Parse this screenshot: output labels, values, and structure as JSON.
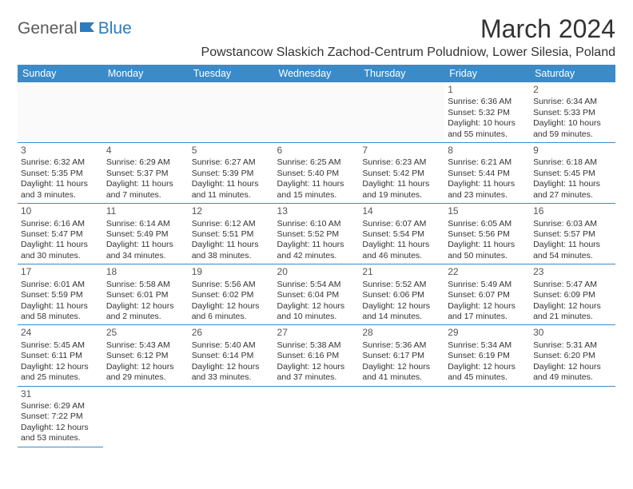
{
  "logo": {
    "part1": "General",
    "part2": "Blue"
  },
  "title": "March 2024",
  "subtitle": "Powstancow Slaskich Zachod-Centrum Poludniow, Lower Silesia, Poland",
  "dayHeaders": [
    "Sunday",
    "Monday",
    "Tuesday",
    "Wednesday",
    "Thursday",
    "Friday",
    "Saturday"
  ],
  "colors": {
    "headerBg": "#3b8bc9",
    "headerText": "#ffffff",
    "border": "#3b8bc9",
    "text": "#333333",
    "logoBlue": "#2b7bbf",
    "logoGray": "#5a5a5a",
    "background": "#ffffff"
  },
  "fonts": {
    "title_size": 32,
    "subtitle_size": 16,
    "header_size": 12.5,
    "cell_size": 10.5,
    "daynum_size": 12,
    "logo_size": 21
  },
  "startWeekday": 5,
  "daysInMonth": 31,
  "days": [
    {
      "n": 1,
      "sunrise": "6:36 AM",
      "sunset": "5:32 PM",
      "daylight": "10 hours and 55 minutes."
    },
    {
      "n": 2,
      "sunrise": "6:34 AM",
      "sunset": "5:33 PM",
      "daylight": "10 hours and 59 minutes."
    },
    {
      "n": 3,
      "sunrise": "6:32 AM",
      "sunset": "5:35 PM",
      "daylight": "11 hours and 3 minutes."
    },
    {
      "n": 4,
      "sunrise": "6:29 AM",
      "sunset": "5:37 PM",
      "daylight": "11 hours and 7 minutes."
    },
    {
      "n": 5,
      "sunrise": "6:27 AM",
      "sunset": "5:39 PM",
      "daylight": "11 hours and 11 minutes."
    },
    {
      "n": 6,
      "sunrise": "6:25 AM",
      "sunset": "5:40 PM",
      "daylight": "11 hours and 15 minutes."
    },
    {
      "n": 7,
      "sunrise": "6:23 AM",
      "sunset": "5:42 PM",
      "daylight": "11 hours and 19 minutes."
    },
    {
      "n": 8,
      "sunrise": "6:21 AM",
      "sunset": "5:44 PM",
      "daylight": "11 hours and 23 minutes."
    },
    {
      "n": 9,
      "sunrise": "6:18 AM",
      "sunset": "5:45 PM",
      "daylight": "11 hours and 27 minutes."
    },
    {
      "n": 10,
      "sunrise": "6:16 AM",
      "sunset": "5:47 PM",
      "daylight": "11 hours and 30 minutes."
    },
    {
      "n": 11,
      "sunrise": "6:14 AM",
      "sunset": "5:49 PM",
      "daylight": "11 hours and 34 minutes."
    },
    {
      "n": 12,
      "sunrise": "6:12 AM",
      "sunset": "5:51 PM",
      "daylight": "11 hours and 38 minutes."
    },
    {
      "n": 13,
      "sunrise": "6:10 AM",
      "sunset": "5:52 PM",
      "daylight": "11 hours and 42 minutes."
    },
    {
      "n": 14,
      "sunrise": "6:07 AM",
      "sunset": "5:54 PM",
      "daylight": "11 hours and 46 minutes."
    },
    {
      "n": 15,
      "sunrise": "6:05 AM",
      "sunset": "5:56 PM",
      "daylight": "11 hours and 50 minutes."
    },
    {
      "n": 16,
      "sunrise": "6:03 AM",
      "sunset": "5:57 PM",
      "daylight": "11 hours and 54 minutes."
    },
    {
      "n": 17,
      "sunrise": "6:01 AM",
      "sunset": "5:59 PM",
      "daylight": "11 hours and 58 minutes."
    },
    {
      "n": 18,
      "sunrise": "5:58 AM",
      "sunset": "6:01 PM",
      "daylight": "12 hours and 2 minutes."
    },
    {
      "n": 19,
      "sunrise": "5:56 AM",
      "sunset": "6:02 PM",
      "daylight": "12 hours and 6 minutes."
    },
    {
      "n": 20,
      "sunrise": "5:54 AM",
      "sunset": "6:04 PM",
      "daylight": "12 hours and 10 minutes."
    },
    {
      "n": 21,
      "sunrise": "5:52 AM",
      "sunset": "6:06 PM",
      "daylight": "12 hours and 14 minutes."
    },
    {
      "n": 22,
      "sunrise": "5:49 AM",
      "sunset": "6:07 PM",
      "daylight": "12 hours and 17 minutes."
    },
    {
      "n": 23,
      "sunrise": "5:47 AM",
      "sunset": "6:09 PM",
      "daylight": "12 hours and 21 minutes."
    },
    {
      "n": 24,
      "sunrise": "5:45 AM",
      "sunset": "6:11 PM",
      "daylight": "12 hours and 25 minutes."
    },
    {
      "n": 25,
      "sunrise": "5:43 AM",
      "sunset": "6:12 PM",
      "daylight": "12 hours and 29 minutes."
    },
    {
      "n": 26,
      "sunrise": "5:40 AM",
      "sunset": "6:14 PM",
      "daylight": "12 hours and 33 minutes."
    },
    {
      "n": 27,
      "sunrise": "5:38 AM",
      "sunset": "6:16 PM",
      "daylight": "12 hours and 37 minutes."
    },
    {
      "n": 28,
      "sunrise": "5:36 AM",
      "sunset": "6:17 PM",
      "daylight": "12 hours and 41 minutes."
    },
    {
      "n": 29,
      "sunrise": "5:34 AM",
      "sunset": "6:19 PM",
      "daylight": "12 hours and 45 minutes."
    },
    {
      "n": 30,
      "sunrise": "5:31 AM",
      "sunset": "6:20 PM",
      "daylight": "12 hours and 49 minutes."
    },
    {
      "n": 31,
      "sunrise": "6:29 AM",
      "sunset": "7:22 PM",
      "daylight": "12 hours and 53 minutes."
    }
  ],
  "labels": {
    "sunrise_prefix": "Sunrise: ",
    "sunset_prefix": "Sunset: ",
    "daylight_prefix": "Daylight: "
  }
}
